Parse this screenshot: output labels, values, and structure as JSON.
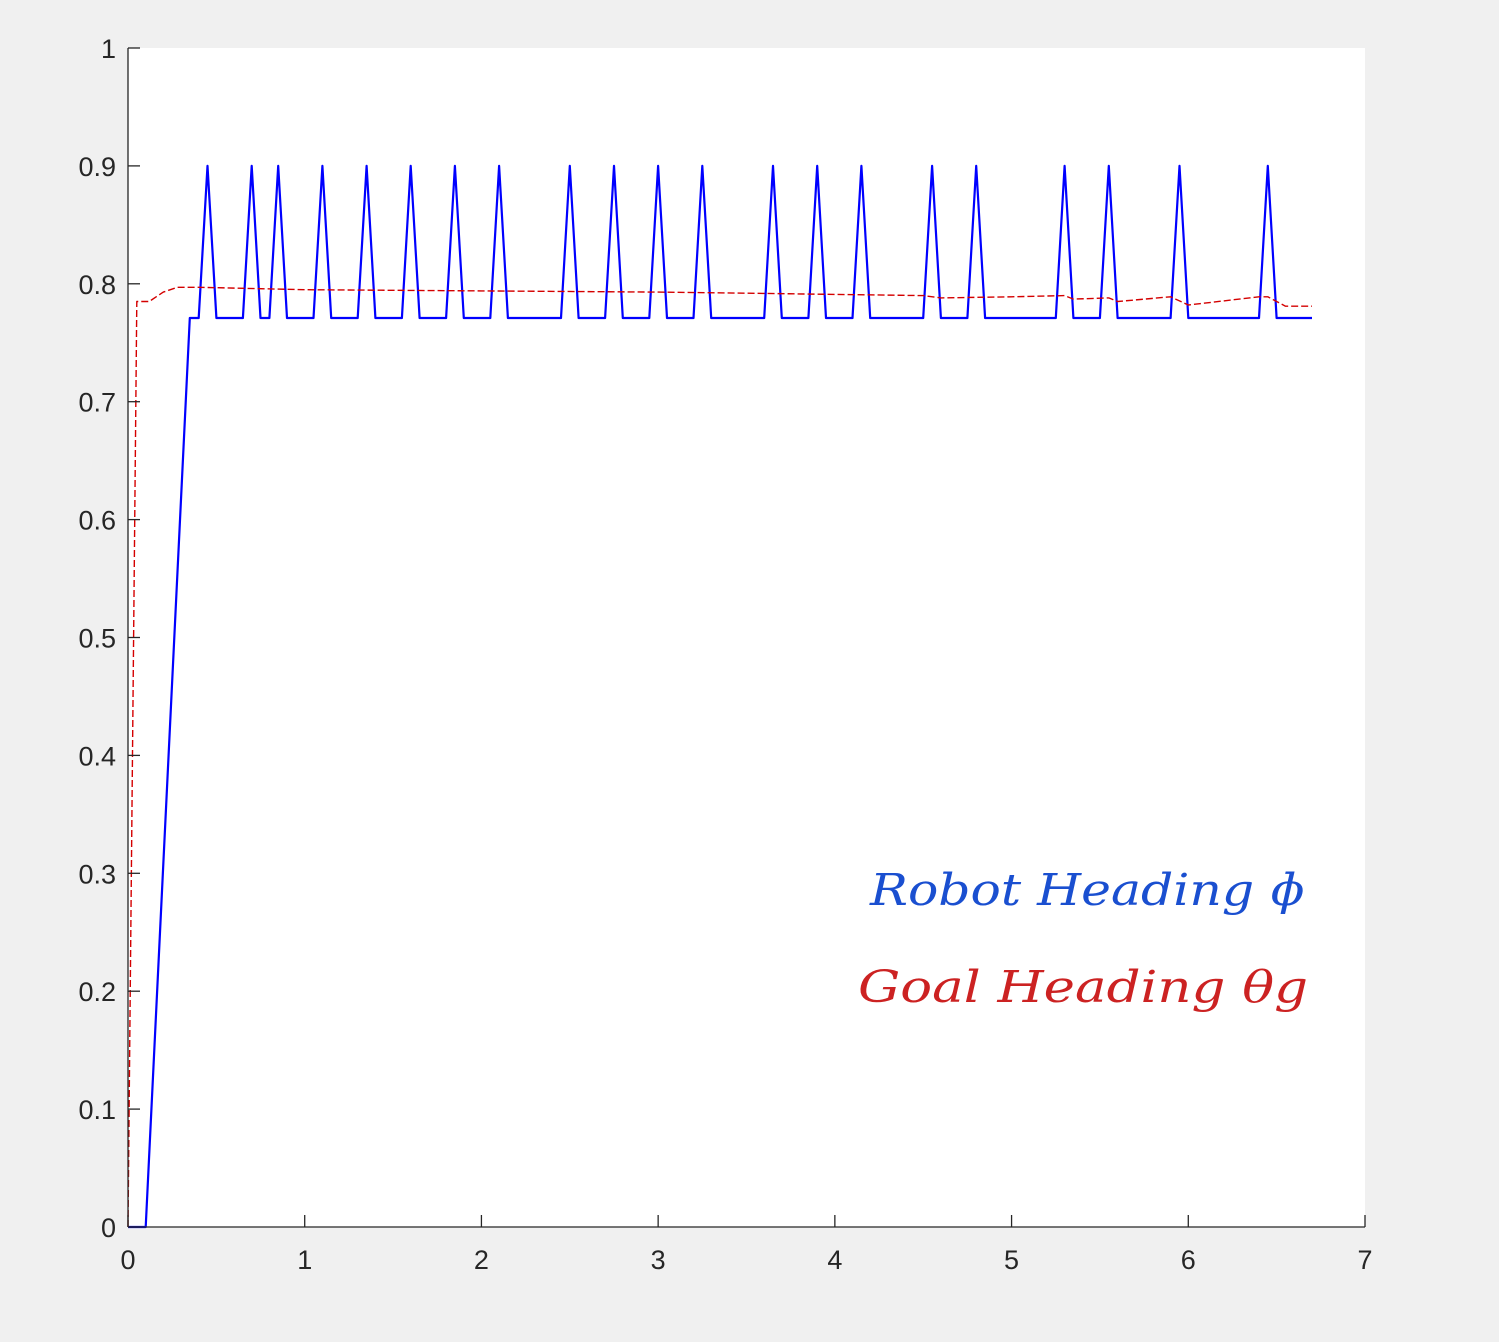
{
  "chart_data": {
    "type": "line",
    "title": "",
    "xlabel": "",
    "ylabel": "",
    "xlim": [
      0,
      7
    ],
    "ylim": [
      0,
      1
    ],
    "x_ticks": [
      0,
      1,
      2,
      3,
      4,
      5,
      6,
      7
    ],
    "y_ticks": [
      0,
      0.1,
      0.2,
      0.3,
      0.4,
      0.5,
      0.6,
      0.7,
      0.8,
      0.9,
      1
    ],
    "x_tick_labels": [
      "0",
      "1",
      "2",
      "3",
      "4",
      "5",
      "6",
      "7"
    ],
    "y_tick_labels": [
      "0",
      "0.1",
      "0.2",
      "0.3",
      "0.4",
      "0.5",
      "0.6",
      "0.7",
      "0.8",
      "0.9",
      "1"
    ],
    "grid": false,
    "series": [
      {
        "name": "Robot Heading ɸ",
        "color": "#0000ff",
        "style": "solid",
        "baseline": 0.771,
        "peak": 0.9,
        "peak_halfwidth": 0.05,
        "points": [
          [
            0,
            0
          ],
          [
            0.1,
            0
          ],
          [
            0.35,
            0.771
          ]
        ],
        "peak_times": [
          0.45,
          0.7,
          0.85,
          1.1,
          1.35,
          1.6,
          1.85,
          2.1,
          2.5,
          2.75,
          3.0,
          3.25,
          3.65,
          3.9,
          4.15,
          4.55,
          4.8,
          5.3,
          5.55,
          5.95,
          6.45
        ],
        "x_end": 6.7
      },
      {
        "name": "Goal Heading θg",
        "color": "#d40000",
        "style": "dashed",
        "points": [
          [
            0,
            0
          ],
          [
            0.05,
            0.785
          ],
          [
            0.12,
            0.785
          ],
          [
            0.2,
            0.793
          ],
          [
            0.28,
            0.797
          ],
          [
            0.4,
            0.797
          ],
          [
            1.0,
            0.795
          ],
          [
            2.0,
            0.794
          ],
          [
            3.0,
            0.793
          ],
          [
            3.5,
            0.792
          ],
          [
            4.0,
            0.791
          ],
          [
            4.5,
            0.79
          ],
          [
            4.6,
            0.788
          ],
          [
            5.0,
            0.789
          ],
          [
            5.3,
            0.79
          ],
          [
            5.35,
            0.787
          ],
          [
            5.55,
            0.788
          ],
          [
            5.6,
            0.785
          ],
          [
            5.9,
            0.789
          ],
          [
            6.0,
            0.782
          ],
          [
            6.4,
            0.789
          ],
          [
            6.45,
            0.789
          ],
          [
            6.55,
            0.781
          ],
          [
            6.7,
            0.781
          ]
        ]
      }
    ],
    "annotations": [
      {
        "text": "Robot Heading ɸ",
        "color": "#1a4fd0"
      },
      {
        "text": "Goal Heading θg",
        "color": "#cc2222"
      }
    ]
  }
}
